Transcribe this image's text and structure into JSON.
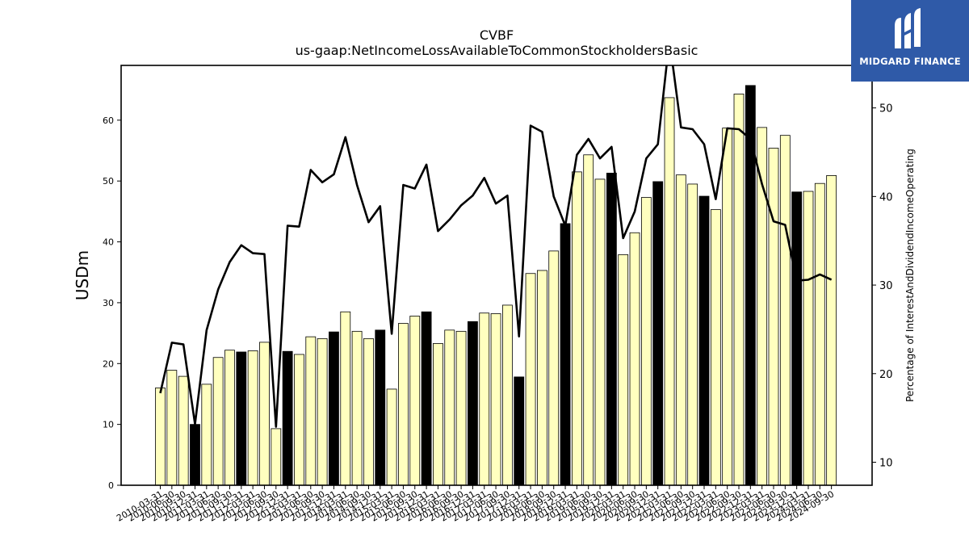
{
  "chart_data": {
    "type": "bar",
    "title": "CVBF",
    "subtitle": "us-gaap:NetIncomeLossAvailableToCommonStockholdersBasic",
    "ylabel": "USDm",
    "y2label": "Percentage of InterestAndDividendIncomeOperating",
    "ylim": [
      0,
      69
    ],
    "y2lim": [
      7.4,
      54.8
    ],
    "yticks": [
      0,
      10,
      20,
      30,
      40,
      50,
      60
    ],
    "y2ticks": [
      10,
      20,
      30,
      40,
      50
    ],
    "categories": [
      "2010-03-31",
      "2010-06-30",
      "2010-09-30",
      "2010-12-31",
      "2011-03-31",
      "2011-06-30",
      "2011-09-30",
      "2011-12-31",
      "2012-03-31",
      "2012-06-30",
      "2012-09-30",
      "2012-12-31",
      "2013-03-31",
      "2013-06-30",
      "2013-09-30",
      "2013-12-31",
      "2014-03-31",
      "2014-06-30",
      "2014-09-30",
      "2014-12-31",
      "2015-03-31",
      "2015-06-30",
      "2015-09-30",
      "2015-12-31",
      "2016-03-31",
      "2016-06-30",
      "2016-09-30",
      "2016-12-31",
      "2017-03-31",
      "2017-06-30",
      "2017-09-30",
      "2017-12-31",
      "2018-03-31",
      "2018-06-30",
      "2018-09-30",
      "2018-12-31",
      "2019-03-31",
      "2019-06-30",
      "2019-09-30",
      "2019-12-31",
      "2020-03-31",
      "2020-06-30",
      "2020-09-30",
      "2020-12-31",
      "2021-03-31",
      "2021-06-30",
      "2021-09-30",
      "2021-12-31",
      "2022-03-31",
      "2022-06-30",
      "2022-09-30",
      "2022-12-31",
      "2023-03-31",
      "2023-06-30",
      "2023-09-30",
      "2023-12-31",
      "2024-03-31",
      "2024-06-30",
      "2024-09-30"
    ],
    "series": [
      {
        "type": "bar",
        "values": [
          16.0,
          18.9,
          17.9,
          10.0,
          16.6,
          21.0,
          22.2,
          21.9,
          22.1,
          23.5,
          9.3,
          22.0,
          21.5,
          24.4,
          24.1,
          25.2,
          28.5,
          25.3,
          24.1,
          25.5,
          15.8,
          26.6,
          27.8,
          28.5,
          23.3,
          25.5,
          25.3,
          26.9,
          28.3,
          28.2,
          29.6,
          17.8,
          34.8,
          35.3,
          38.5,
          43.0,
          51.5,
          54.3,
          50.3,
          51.3,
          37.9,
          41.5,
          47.3,
          49.9,
          63.7,
          51.0,
          49.5,
          47.5,
          45.3,
          58.7,
          64.3,
          65.7,
          58.8,
          55.4,
          57.5,
          48.2,
          48.3,
          49.6,
          50.9
        ],
        "highlight": [
          false,
          false,
          false,
          true,
          false,
          false,
          false,
          true,
          false,
          false,
          false,
          true,
          false,
          false,
          false,
          true,
          false,
          false,
          false,
          true,
          false,
          false,
          false,
          true,
          false,
          false,
          false,
          true,
          false,
          false,
          false,
          true,
          false,
          false,
          false,
          true,
          false,
          false,
          false,
          true,
          false,
          false,
          false,
          true,
          false,
          false,
          false,
          true,
          false,
          false,
          false,
          true,
          false,
          false,
          false,
          true,
          false,
          false,
          false
        ]
      },
      {
        "type": "line",
        "axis": "right",
        "values": [
          17.8,
          23.5,
          23.3,
          14.3,
          24.9,
          29.5,
          32.6,
          34.5,
          33.6,
          33.5,
          14.0,
          36.7,
          36.6,
          43.0,
          41.6,
          42.5,
          46.7,
          41.3,
          37.1,
          38.9,
          24.5,
          41.3,
          40.9,
          43.6,
          36.1,
          37.4,
          39.0,
          40.1,
          42.1,
          39.2,
          40.1,
          24.2,
          48.0,
          47.3,
          40.0,
          36.7,
          44.7,
          46.5,
          44.3,
          45.6,
          35.3,
          38.3,
          44.3,
          45.9,
          57.7,
          47.8,
          47.6,
          45.9,
          39.7,
          47.7,
          47.6,
          46.5,
          41.4,
          37.2,
          36.8,
          30.5,
          30.6,
          31.2,
          30.6
        ]
      }
    ],
    "colors": {
      "bar": "#ffffbf",
      "bar_highlight": "#000000",
      "line": "#000000",
      "brand_bg": "#2f5aa8"
    },
    "grid": false,
    "legend": "none"
  },
  "brand": {
    "name": "MIDGARD FINANCE",
    "logo_icon": "midgard-logo-icon"
  }
}
